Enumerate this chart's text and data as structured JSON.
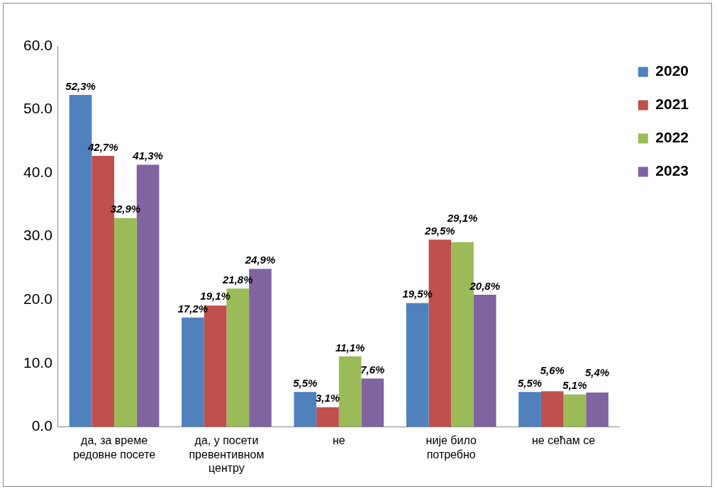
{
  "chart_data": {
    "type": "bar",
    "categories": [
      "да, за време редовне посете",
      "да, у посети превентивном центру",
      "не",
      "није било потребно",
      "не сећам се"
    ],
    "series": [
      {
        "name": "2020",
        "color": "#4f81bd",
        "values": [
          52.3,
          17.2,
          5.5,
          19.5,
          5.5
        ],
        "value_labels": [
          "52,3%",
          "17,2%",
          "5,5%",
          "19,5%",
          "5,5%"
        ]
      },
      {
        "name": "2021",
        "color": "#c0504d",
        "values": [
          42.7,
          19.1,
          3.1,
          29.5,
          5.6
        ],
        "value_labels": [
          "42,7%",
          "19,1%",
          "3,1%",
          "29,5%",
          "5,6%"
        ]
      },
      {
        "name": "2022",
        "color": "#9bbb59",
        "values": [
          32.9,
          21.8,
          11.1,
          29.1,
          5.1
        ],
        "value_labels": [
          "32,9%",
          "21,8%",
          "11,1%",
          "29,1%",
          "5,1%"
        ]
      },
      {
        "name": "2023",
        "color": "#8064a2",
        "values": [
          41.3,
          24.9,
          7.6,
          20.8,
          5.4
        ],
        "value_labels": [
          "41,3%",
          "24,9%",
          "7,6%",
          "20,8%",
          "5,4%"
        ]
      }
    ],
    "ylim": [
      0,
      60
    ],
    "yticks": [
      {
        "value": 0,
        "label": "0.0"
      },
      {
        "value": 10,
        "label": "10.0"
      },
      {
        "value": 20,
        "label": "20.0"
      },
      {
        "value": 30,
        "label": "30.0"
      },
      {
        "value": 40,
        "label": "40.0"
      },
      {
        "value": 50,
        "label": "50.0"
      },
      {
        "value": 60,
        "label": "60.0"
      }
    ],
    "grid": false,
    "legend": "top right"
  }
}
